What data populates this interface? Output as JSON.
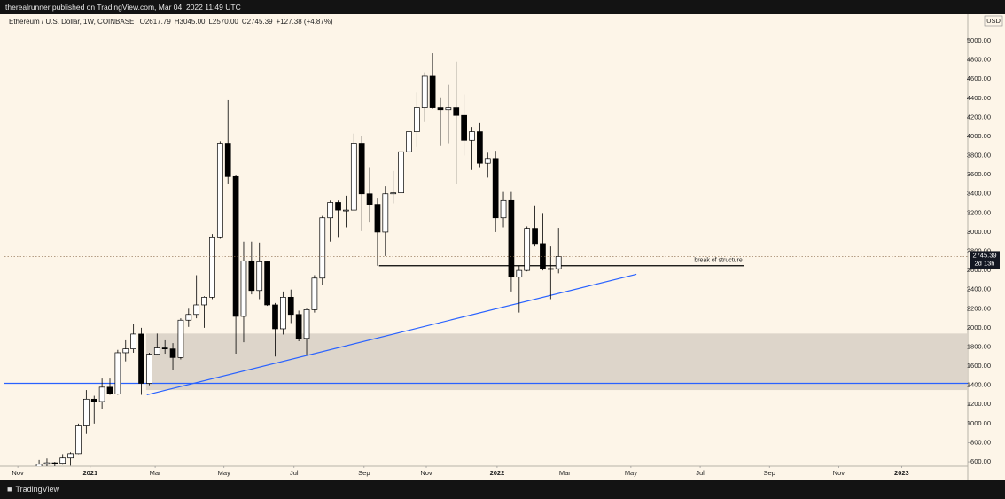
{
  "page": {
    "publisher": "therealrunner published on TradingView.com, Mar 04, 2022 11:49 UTC",
    "brand": "TradingView"
  },
  "chart_data": {
    "type": "candlestick",
    "title": "Ethereum / U.S. Dollar, 1W, COINBASE",
    "legend_values": [
      "O2617.79",
      "H3045.00",
      "L2570.00",
      "C2745.39",
      "+127.38 (+4.87%)"
    ],
    "currency": "USD",
    "countdown": "2d 13h",
    "up_color": "#ffffff",
    "down_color": "#000000",
    "open": [
      510,
      575,
      590,
      585,
      640,
      685,
      975,
      1255,
      1230,
      1380,
      1310,
      1740,
      1780,
      1935,
      1420,
      1725,
      1790,
      1780,
      1690,
      2080,
      2140,
      2240,
      2320,
      2950,
      3930,
      3580,
      2120,
      2700,
      2390,
      2690,
      2240,
      1990,
      2320,
      2140,
      1890,
      2190,
      2520,
      3150,
      3310,
      3230,
      3230,
      3930,
      3400,
      3290,
      3000,
      3400,
      3410,
      3840,
      4050,
      4300,
      4630,
      4300,
      4280,
      4300,
      4220,
      3960,
      4050,
      3720,
      3770,
      3150,
      3330,
      2530,
      2600,
      3040,
      2880,
      2620,
      2617.79
    ],
    "high": [
      620,
      635,
      600,
      680,
      700,
      1000,
      1350,
      1290,
      1470,
      1470,
      1770,
      1870,
      2040,
      2000,
      1740,
      1940,
      1870,
      1840,
      2100,
      2200,
      2550,
      2330,
      2980,
      3950,
      4380,
      3600,
      2900,
      2900,
      2890,
      2700,
      2260,
      2380,
      2400,
      2180,
      2200,
      2550,
      3170,
      3330,
      3330,
      3380,
      4030,
      4000,
      3680,
      3360,
      3480,
      3640,
      3900,
      4370,
      4460,
      4670,
      4870,
      4400,
      4540,
      4780,
      4440,
      4100,
      4140,
      3830,
      3850,
      3420,
      3420,
      2650,
      3060,
      3280,
      3200,
      2850,
      3045
    ],
    "low": [
      480,
      530,
      530,
      570,
      560,
      680,
      890,
      1000,
      1150,
      1300,
      1300,
      1650,
      1740,
      1300,
      1400,
      1720,
      1730,
      1560,
      1670,
      2010,
      2100,
      2000,
      2300,
      2930,
      3500,
      1730,
      1850,
      2350,
      2300,
      2230,
      1700,
      1930,
      2050,
      1860,
      1720,
      2160,
      2450,
      2900,
      2950,
      3050,
      3230,
      3010,
      3100,
      2650,
      2750,
      3300,
      3400,
      3700,
      3890,
      4150,
      4290,
      3900,
      3930,
      3500,
      3800,
      3650,
      3680,
      3570,
      3000,
      3050,
      2380,
      2160,
      2590,
      2850,
      2600,
      2300,
      2570
    ],
    "close": [
      575,
      590,
      585,
      640,
      685,
      975,
      1255,
      1230,
      1380,
      1310,
      1740,
      1780,
      1935,
      1420,
      1725,
      1790,
      1780,
      1690,
      2080,
      2140,
      2240,
      2320,
      2950,
      3930,
      3580,
      2120,
      2700,
      2390,
      2690,
      2240,
      1990,
      2320,
      2140,
      1890,
      2190,
      2520,
      3150,
      3310,
      3230,
      3230,
      3930,
      3400,
      3290,
      3000,
      3400,
      3410,
      3840,
      4050,
      4300,
      4630,
      4300,
      4280,
      4300,
      4220,
      3960,
      4050,
      3720,
      3770,
      3150,
      3330,
      2530,
      2600,
      3040,
      2880,
      2620,
      2618.01,
      2745.39
    ],
    "xlim": [
      -4.4,
      118
    ],
    "xticks": [
      {
        "value": -2.7,
        "label": "Nov"
      },
      {
        "value": 6.5,
        "label": "2021"
      },
      {
        "value": 14.75,
        "label": "Mar"
      },
      {
        "value": 23.5,
        "label": "May"
      },
      {
        "value": 32.4,
        "label": "Jul"
      },
      {
        "value": 41.3,
        "label": "Sep"
      },
      {
        "value": 49.2,
        "label": "Nov"
      },
      {
        "value": 58.2,
        "label": "2022"
      },
      {
        "value": 66.8,
        "label": "Mar"
      },
      {
        "value": 75.2,
        "label": "May"
      },
      {
        "value": 84.0,
        "label": "Jul"
      },
      {
        "value": 92.8,
        "label": "Sep"
      },
      {
        "value": 101.6,
        "label": "Nov"
      },
      {
        "value": 109.6,
        "label": "2023"
      }
    ],
    "ylim": [
      554,
      5278
    ],
    "yticks": [
      {
        "value": 600,
        "label": "600.00"
      },
      {
        "value": 800,
        "label": "800.00"
      },
      {
        "value": 1000,
        "label": "1000.00"
      },
      {
        "value": 1200,
        "label": "1200.00"
      },
      {
        "value": 1400,
        "label": "1400.00"
      },
      {
        "value": 1600,
        "label": "1600.00"
      },
      {
        "value": 1800,
        "label": "1800.00"
      },
      {
        "value": 2000,
        "label": "2000.00"
      },
      {
        "value": 2200,
        "label": "2200.00"
      },
      {
        "value": 2400,
        "label": "2400.00"
      },
      {
        "value": 2600,
        "label": "2600.00"
      },
      {
        "value": 2800,
        "label": "2800.00"
      },
      {
        "value": 3000,
        "label": "3000.00"
      },
      {
        "value": 3200,
        "label": "3200.00"
      },
      {
        "value": 3400,
        "label": "3400.00"
      },
      {
        "value": 3600,
        "label": "3600.00"
      },
      {
        "value": 3800,
        "label": "3800.00"
      },
      {
        "value": 4000,
        "label": "4000.00"
      },
      {
        "value": 4200,
        "label": "4200.00"
      },
      {
        "value": 4400,
        "label": "4400.00"
      },
      {
        "value": 4600,
        "label": "4600.00"
      },
      {
        "value": 4800,
        "label": "4800.00"
      },
      {
        "value": 5000,
        "label": "5000.00"
      }
    ],
    "annotations": {
      "zone": {
        "x": [
          13.6,
          118
        ],
        "y": [
          1350,
          1940
        ],
        "color": "#d9d2c7"
      },
      "hline": {
        "y": 1420,
        "color": "#2962ff"
      },
      "trendline": {
        "x": [
          13.7,
          75.9
        ],
        "y": [
          1300,
          2560
        ],
        "color": "#2962ff"
      },
      "structure": {
        "x": [
          43.2,
          89.6
        ],
        "y": 2650,
        "label": "break of structure",
        "color": "#000000"
      }
    }
  }
}
